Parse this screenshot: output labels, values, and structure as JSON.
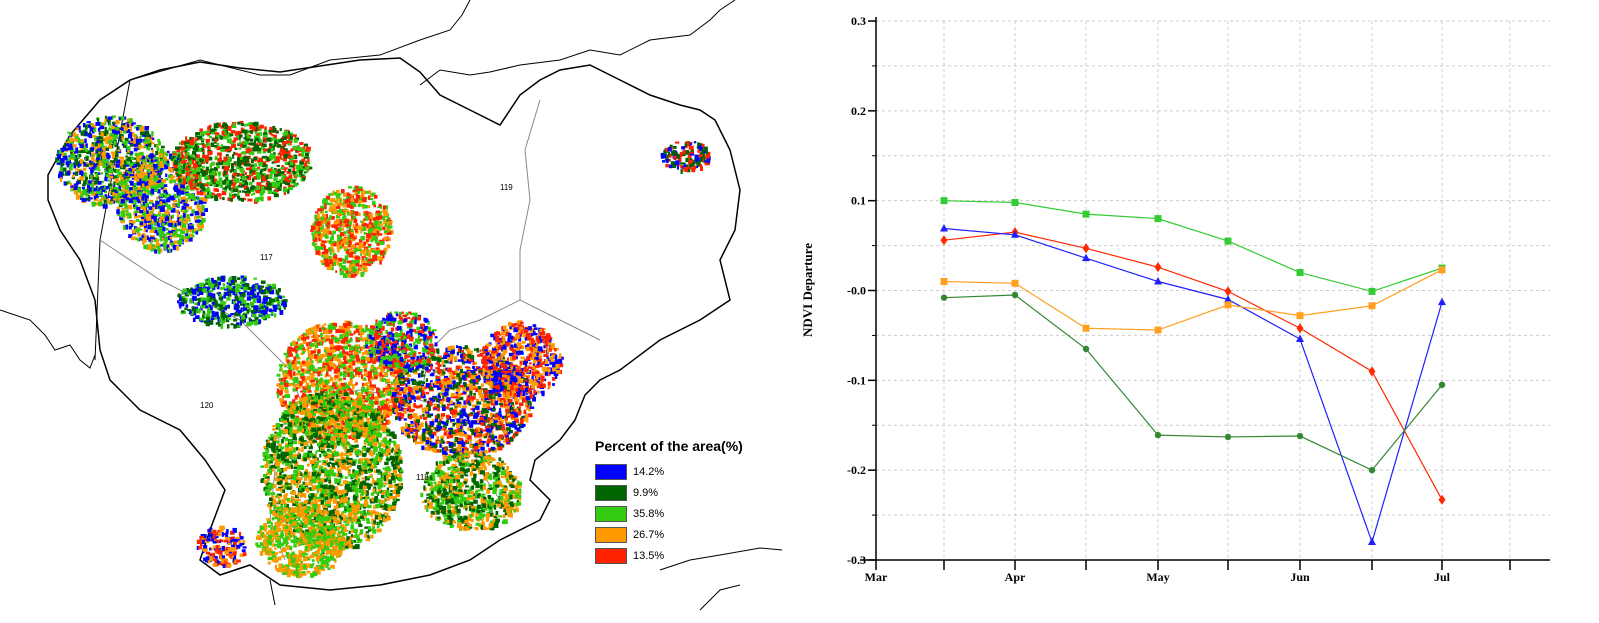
{
  "map": {
    "region_labels": [
      "117",
      "119",
      "120",
      "118"
    ],
    "legend": {
      "title": "Percent of the area(%)",
      "items": [
        {
          "label": "14.2%",
          "color": "#0000ff"
        },
        {
          "label": "9.9%",
          "color": "#006400"
        },
        {
          "label": "35.8%",
          "color": "#33cc11"
        },
        {
          "label": "26.7%",
          "color": "#ff9900"
        },
        {
          "label": "13.5%",
          "color": "#ff2200"
        }
      ]
    }
  },
  "chart_data": {
    "type": "line",
    "title": "",
    "xlabel": "",
    "ylabel": "NDVI Departure",
    "ylim": [
      -0.3,
      0.3
    ],
    "yticks": [
      "0.3",
      "0.2",
      "0.1",
      "-0.0",
      "-0.1",
      "-0.2",
      "-0.3"
    ],
    "xticks": [
      "Mar",
      "Apr",
      "May",
      "Jun",
      "Jul"
    ],
    "x": [
      "Mar 16",
      "Apr 1",
      "Apr 16",
      "May 1",
      "May 16",
      "Jun 1",
      "Jun 16",
      "Jul 1"
    ],
    "grid": true,
    "series": [
      {
        "color": "#33cc33",
        "marker": "square",
        "values": [
          0.1,
          0.098,
          0.085,
          0.08,
          0.055,
          0.02,
          -0.001,
          0.025
        ]
      },
      {
        "color": "#ff2a00",
        "marker": "diamond",
        "values": [
          0.056,
          0.065,
          0.047,
          0.026,
          -0.001,
          -0.042,
          -0.09,
          -0.233
        ]
      },
      {
        "color": "#2020ff",
        "marker": "triangle",
        "values": [
          0.069,
          0.062,
          0.036,
          0.01,
          -0.01,
          -0.054,
          -0.28,
          -0.013
        ]
      },
      {
        "color": "#ffa020",
        "marker": "square",
        "values": [
          0.01,
          0.008,
          -0.042,
          -0.044,
          -0.016,
          -0.028,
          -0.017,
          0.023
        ]
      },
      {
        "color": "#338833",
        "marker": "circle",
        "values": [
          -0.008,
          -0.005,
          -0.065,
          -0.161,
          -0.163,
          -0.162,
          -0.2,
          -0.105
        ]
      }
    ]
  }
}
